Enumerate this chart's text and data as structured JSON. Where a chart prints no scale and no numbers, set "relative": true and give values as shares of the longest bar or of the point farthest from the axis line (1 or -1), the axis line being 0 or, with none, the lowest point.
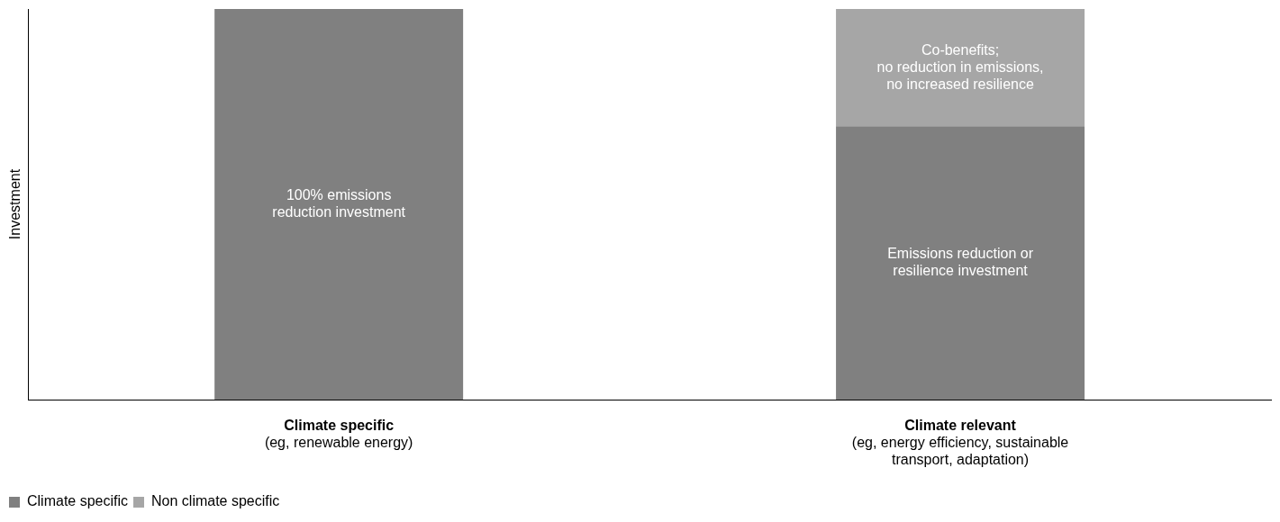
{
  "chart_data": {
    "type": "bar",
    "stacked": true,
    "relative": true,
    "ylabel": "Investment",
    "categories": [
      "Climate specific\n(eg, renewable energy)",
      "Climate relevant\n(eg, energy efficiency, sustainable\ntransport, adaptation)"
    ],
    "series": [
      {
        "name": "Climate specific",
        "color": "#808080",
        "values": [
          1,
          0.7
        ]
      },
      {
        "name": "Non climate specific",
        "color": "#a6a6a6",
        "values": [
          0,
          0.3
        ]
      }
    ],
    "annotations": [
      "100% emissions\nreduction investment",
      "Emissions reduction or\nresilience investment",
      "Co-benefits;\nno reduction in emissions,\nno increased resilience"
    ],
    "grid": false,
    "legend": "bottom left"
  }
}
